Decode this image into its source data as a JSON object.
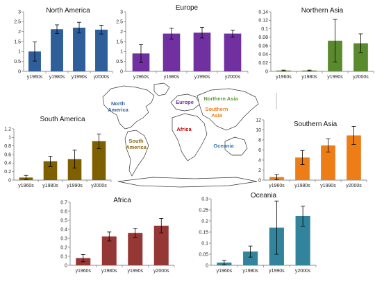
{
  "map": {
    "labels": [
      {
        "lines": [
          "North",
          "America"
        ],
        "color": "#2e5f9a"
      },
      {
        "lines": [
          "Europe"
        ],
        "color": "#7030a0"
      },
      {
        "lines": [
          "Northern Asia"
        ],
        "color": "#5a9a2e"
      },
      {
        "lines": [
          "South",
          "America"
        ],
        "color": "#8b6914"
      },
      {
        "lines": [
          "Africa"
        ],
        "color": "#c00000"
      },
      {
        "lines": [
          "Southern",
          "Asia"
        ],
        "color": "#ed7d17"
      },
      {
        "lines": [
          "Oceania"
        ],
        "color": "#2e75b6"
      }
    ]
  },
  "chart_data": [
    {
      "type": "bar",
      "title": "North America",
      "categories": [
        "y1960s",
        "y1980s",
        "y1990s",
        "y2000s"
      ],
      "values": [
        1.0,
        2.12,
        2.2,
        2.1
      ],
      "errors": [
        0.48,
        0.22,
        0.27,
        0.22
      ],
      "ylim": [
        0,
        3
      ],
      "yticks": [
        "0",
        "0.5",
        "1",
        "1.5",
        "2",
        "2.5",
        "3"
      ],
      "color": "#2e5f9a"
    },
    {
      "type": "bar",
      "title": "Europe",
      "categories": [
        "y1960s",
        "y1980s",
        "y1990s",
        "y2000s"
      ],
      "values": [
        0.9,
        1.9,
        1.95,
        1.9
      ],
      "errors": [
        0.45,
        0.27,
        0.27,
        0.18
      ],
      "ylim": [
        0,
        3
      ],
      "yticks": [
        "0",
        "0.5",
        "1",
        "1.5",
        "2",
        "2.5",
        "3"
      ],
      "color": "#7030a0"
    },
    {
      "type": "bar",
      "title": "Northern Asia",
      "categories": [
        "y1960s",
        "y1980s",
        "y1990s",
        "y2000s"
      ],
      "values": [
        0.002,
        0.002,
        0.072,
        0.066
      ],
      "errors": [
        0.001,
        0.001,
        0.05,
        0.022
      ],
      "ylim": [
        0,
        0.14
      ],
      "yticks": [
        "0",
        "0.02",
        "0.04",
        "0.06",
        "0.08",
        "0.1",
        "0.12",
        "0.14"
      ],
      "color": "#5a8a2e"
    },
    {
      "type": "bar",
      "title": "South America",
      "categories": [
        "y1960s",
        "y1980s",
        "y1990s",
        "y2000s"
      ],
      "values": [
        0.06,
        0.44,
        0.49,
        0.91
      ],
      "errors": [
        0.05,
        0.12,
        0.21,
        0.17
      ],
      "ylim": [
        0,
        1.2
      ],
      "yticks": [
        "0",
        "0.2",
        "0.4",
        "0.6",
        "0.8",
        "1",
        "1.2"
      ],
      "color": "#7f6000"
    },
    {
      "type": "bar",
      "title": "Southern Asia",
      "categories": [
        "y1960s",
        "y1980s",
        "y1990s",
        "y2000s"
      ],
      "values": [
        0.6,
        4.5,
        6.9,
        8.9
      ],
      "errors": [
        0.5,
        1.4,
        1.3,
        1.8
      ],
      "ylim": [
        0,
        12
      ],
      "yticks": [
        "0",
        "2",
        "4",
        "6",
        "8",
        "10",
        "12"
      ],
      "color": "#ed7d17"
    },
    {
      "type": "bar",
      "title": "Africa",
      "categories": [
        "y1960s",
        "y1980s",
        "y1990s",
        "y2000s"
      ],
      "values": [
        0.08,
        0.32,
        0.36,
        0.44
      ],
      "errors": [
        0.04,
        0.05,
        0.05,
        0.08
      ],
      "ylim": [
        0,
        0.7
      ],
      "yticks": [
        "0",
        "0.1",
        "0.2",
        "0.3",
        "0.4",
        "0.5",
        "0.6",
        "0.7"
      ],
      "color": "#953735"
    },
    {
      "type": "bar",
      "title": "Oceania",
      "categories": [
        "y1960s",
        "y1980s",
        "y1990s",
        "y2000s"
      ],
      "values": [
        0.012,
        0.062,
        0.17,
        0.222
      ],
      "errors": [
        0.01,
        0.025,
        0.12,
        0.045
      ],
      "ylim": [
        0,
        0.3
      ],
      "yticks": [
        "0",
        "0.05",
        "0.1",
        "0.15",
        "0.2",
        "0.25",
        "0.3"
      ],
      "color": "#31849b"
    }
  ]
}
